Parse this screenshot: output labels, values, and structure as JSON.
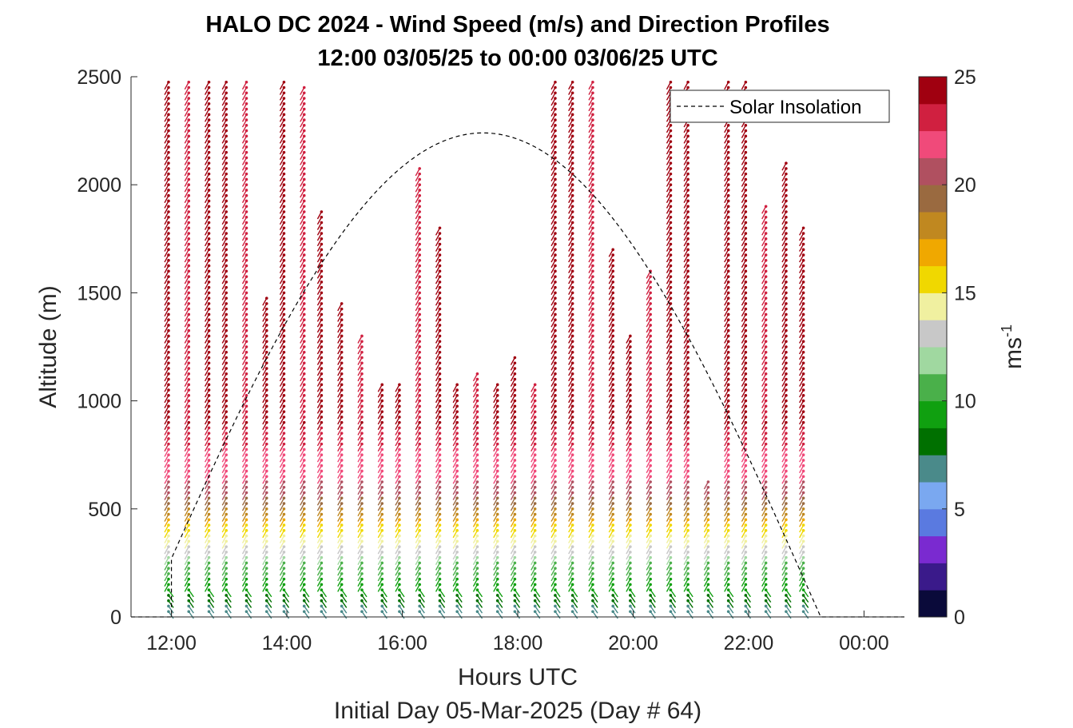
{
  "chart_data": {
    "type": "wind-barb-profile",
    "title_line1": "HALO DC 2024 - Wind Speed (m/s) and Direction Profiles",
    "title_line2": "12:00 03/05/25 to 00:00 03/06/25  UTC",
    "xlabel": "Hours UTC",
    "xlabel2": "Initial Day 05-Mar-2025 (Day # 64)",
    "ylabel": "Altitude (m)",
    "xlim": [
      11.3,
      24.7
    ],
    "ylim": [
      0,
      2500
    ],
    "xticks": [
      12,
      14,
      16,
      18,
      20,
      22,
      24
    ],
    "xtick_labels": [
      "12:00",
      "14:00",
      "16:00",
      "18:00",
      "20:00",
      "22:00",
      "00:00"
    ],
    "yticks": [
      0,
      500,
      1000,
      1500,
      2000,
      2500
    ],
    "ytick_labels": [
      "0",
      "500",
      "1000",
      "1500",
      "2000",
      "2500"
    ],
    "colorbar": {
      "label": "ms",
      "label_exponent": "-1",
      "range": [
        0,
        25
      ],
      "ticks": [
        0,
        5,
        10,
        15,
        20,
        25
      ],
      "tick_labels": [
        "0",
        "5",
        "10",
        "15",
        "20",
        "25"
      ],
      "colors": [
        "#0a0a3a",
        "#3a1a8a",
        "#7a2ad0",
        "#5a7ae0",
        "#7aa8f0",
        "#4a8a8a",
        "#007000",
        "#10a010",
        "#4ab04a",
        "#a0d8a0",
        "#c8c8c8",
        "#f0f0a0",
        "#f0d800",
        "#f0a800",
        "#c08820",
        "#9a6a40",
        "#b05060",
        "#f04a7a",
        "#d02040",
        "#a00010"
      ]
    },
    "legend": {
      "entries": [
        "Solar Insolation"
      ],
      "placement": "top-right"
    },
    "solar_insolation": {
      "style": "dashed",
      "color": "#000000",
      "peak_time": 17.4,
      "peak_altitude": 2240,
      "zero_start": 12.0,
      "zero_end": 23.7
    },
    "profiles": [
      {
        "t": 11.95,
        "top": 2480
      },
      {
        "t": 12.3,
        "top": 2480
      },
      {
        "t": 12.65,
        "top": 2480
      },
      {
        "t": 12.95,
        "top": 2480
      },
      {
        "t": 13.3,
        "top": 2480
      },
      {
        "t": 13.65,
        "top": 1480
      },
      {
        "t": 13.95,
        "top": 2480
      },
      {
        "t": 14.3,
        "top": 2450
      },
      {
        "t": 14.6,
        "top": 1880
      },
      {
        "t": 14.95,
        "top": 1450
      },
      {
        "t": 15.3,
        "top": 1300
      },
      {
        "t": 15.65,
        "top": 1090
      },
      {
        "t": 15.95,
        "top": 1090
      },
      {
        "t": 16.3,
        "top": 2080
      },
      {
        "t": 16.65,
        "top": 1810
      },
      {
        "t": 16.95,
        "top": 1080
      },
      {
        "t": 17.3,
        "top": 1130
      },
      {
        "t": 17.65,
        "top": 1080
      },
      {
        "t": 17.95,
        "top": 1200
      },
      {
        "t": 18.3,
        "top": 1080
      },
      {
        "t": 18.65,
        "top": 2480
      },
      {
        "t": 18.95,
        "top": 2480
      },
      {
        "t": 19.3,
        "top": 2480
      },
      {
        "t": 19.65,
        "top": 1700
      },
      {
        "t": 19.95,
        "top": 1310
      },
      {
        "t": 20.3,
        "top": 1600
      },
      {
        "t": 20.65,
        "top": 2480
      },
      {
        "t": 20.95,
        "top": 2480
      },
      {
        "t": 21.3,
        "top": 640
      },
      {
        "t": 21.65,
        "top": 2480
      },
      {
        "t": 21.95,
        "top": 2480
      },
      {
        "t": 22.3,
        "top": 1900
      },
      {
        "t": 22.65,
        "top": 2100
      },
      {
        "t": 22.95,
        "top": 1800
      }
    ]
  }
}
